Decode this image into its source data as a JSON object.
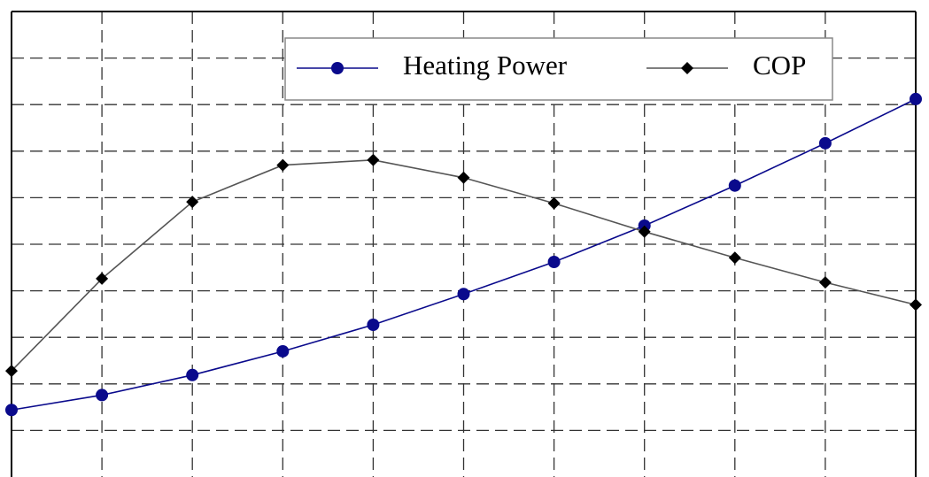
{
  "chart_data": {
    "type": "line",
    "x": [
      0,
      1,
      2,
      3,
      4,
      5,
      6,
      7,
      8,
      9,
      10
    ],
    "xlim": [
      0,
      10
    ],
    "xticks": [
      1,
      2,
      3,
      4,
      5,
      6,
      7,
      8,
      9
    ],
    "ylim": [
      -1,
      9
    ],
    "yticks": [
      0,
      1,
      2,
      3,
      4,
      5,
      6,
      7,
      8
    ],
    "grid": true,
    "legend": "top-right",
    "series": [
      {
        "name": "Heating Power",
        "color": "#0a0a8c",
        "marker": "circle",
        "values": [
          0.44,
          0.76,
          1.19,
          1.7,
          2.27,
          2.93,
          3.62,
          4.4,
          5.26,
          6.17,
          7.12
        ]
      },
      {
        "name": "COP",
        "color": "#000000",
        "line_color": "#555555",
        "marker": "diamond",
        "values": [
          1.28,
          3.26,
          4.91,
          5.7,
          5.81,
          5.43,
          4.88,
          4.27,
          3.71,
          3.18,
          2.7
        ]
      }
    ]
  }
}
